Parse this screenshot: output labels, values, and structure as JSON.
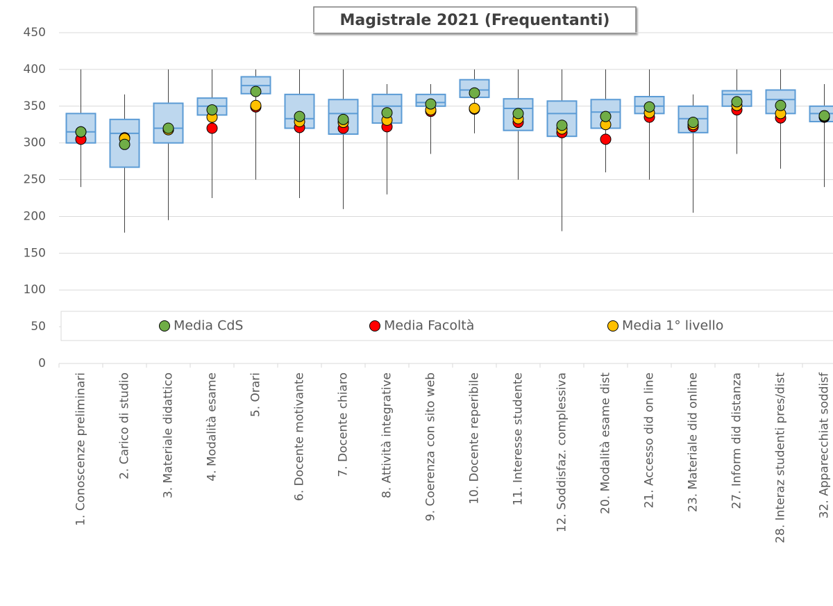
{
  "chart_data": {
    "type": "box",
    "title": "Magistrale 2021 (Frequentanti)",
    "categories": [
      "1. Conoscenze preliminari",
      "2. Carico di studio",
      "3. Materiale didattico",
      "4. Modalità esame",
      "5. Orari",
      "6. Docente motivante",
      "7. Docente chiaro",
      "8. Attività integrative",
      "9. Coerenza con sito web",
      "10. Docente reperibile",
      "11. Interesse studente",
      "12. Soddisfaz. complessiva",
      "20. Modalità esame dist",
      "21. Accesso did on line",
      "23. Materiale did online",
      "27. Inform did distanza",
      "28. Interaz studenti pres/dist",
      "32. Apparecchiat soddisf"
    ],
    "box_color": "#bdd7ee",
    "box_edge": "#5b9bd5",
    "whisker_low": [
      240,
      178,
      195,
      225,
      250,
      225,
      210,
      230,
      285,
      313,
      250,
      180,
      260,
      250,
      205,
      285,
      265,
      240
    ],
    "q1": [
      300,
      267,
      300,
      338,
      367,
      320,
      312,
      327,
      350,
      362,
      317,
      309,
      320,
      340,
      314,
      350,
      340,
      329
    ],
    "median": [
      315,
      313,
      320,
      350,
      378,
      333,
      340,
      350,
      355,
      372,
      347,
      340,
      342,
      350,
      333,
      366,
      359,
      340
    ],
    "q3": [
      340,
      332,
      354,
      361,
      390,
      366,
      359,
      366,
      366,
      386,
      360,
      357,
      359,
      363,
      350,
      371,
      372,
      350
    ],
    "whisker_high": [
      400,
      366,
      400,
      400,
      400,
      400,
      400,
      380,
      380,
      400,
      400,
      400,
      400,
      400,
      366,
      400,
      400,
      380
    ],
    "series": [
      {
        "name": "Media CdS",
        "color": "#70ad47",
        "values": [
          315,
          298,
          320,
          345,
          370,
          336,
          332,
          341,
          353,
          368,
          340,
          324,
          336,
          349,
          328,
          356,
          351,
          337
        ]
      },
      {
        "name": "Media Facoltà",
        "color": "#ff0000",
        "values": [
          305,
          307,
          318,
          320,
          349,
          321,
          320,
          322,
          343,
          346,
          328,
          314,
          305,
          335,
          322,
          345,
          334,
          335
        ]
      },
      {
        "name": "Media 1° livello",
        "color": "#ffc000",
        "values": [
          315,
          306,
          318,
          335,
          351,
          329,
          328,
          331,
          345,
          347,
          333,
          319,
          325,
          341,
          325,
          351,
          340,
          336
        ]
      }
    ],
    "ylim": [
      0,
      450
    ],
    "yticks": [
      0,
      50,
      100,
      150,
      200,
      250,
      300,
      350,
      400,
      450
    ],
    "grid": true
  }
}
